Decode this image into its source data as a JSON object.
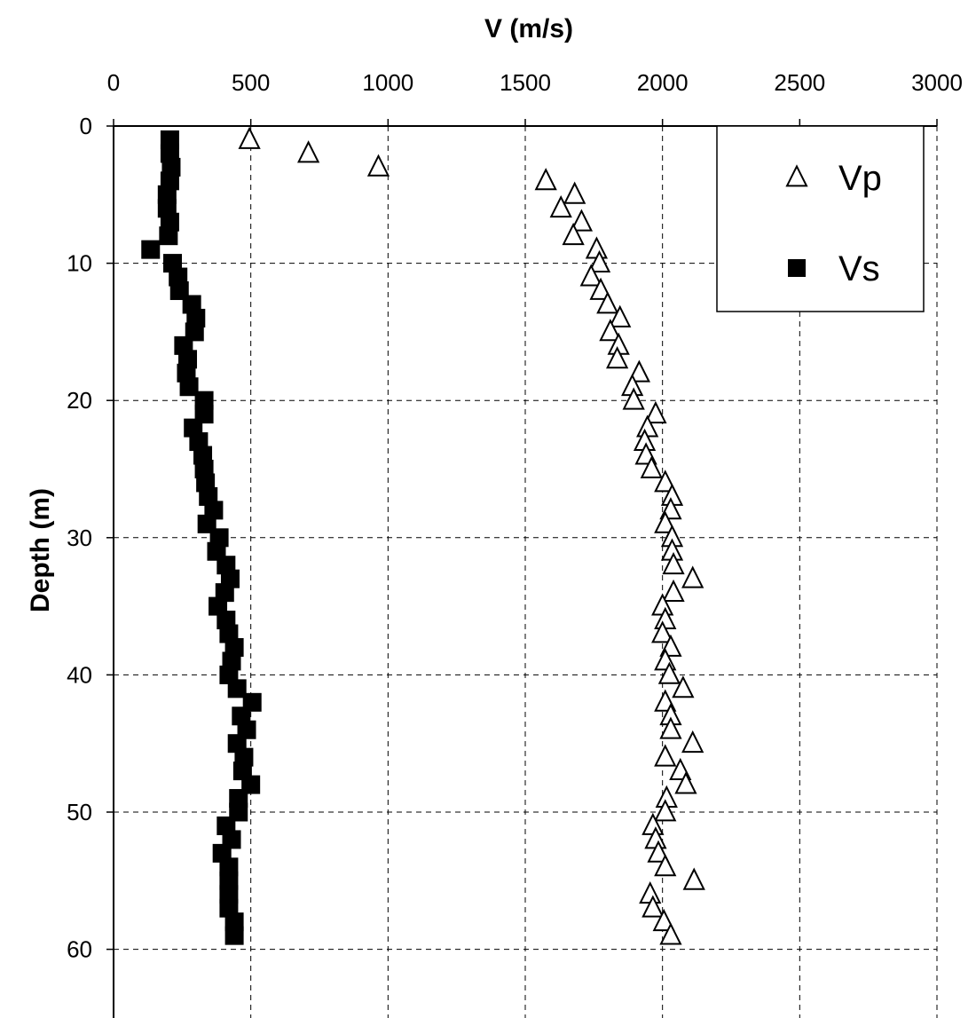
{
  "chart_data": {
    "type": "scatter",
    "xlabel": "V (m/s)",
    "ylabel": "Depth (m)",
    "xlim": [
      0,
      3000
    ],
    "ylim": [
      0,
      65
    ],
    "y_inverted": true,
    "x_axis_position": "top",
    "x_ticks": [
      0,
      500,
      1000,
      1500,
      2000,
      2500,
      3000
    ],
    "y_ticks": [
      0,
      10,
      20,
      30,
      40,
      50,
      60
    ],
    "grid": true,
    "legend_placement": "top-right",
    "series": [
      {
        "name": "Vp",
        "marker": "open-triangle",
        "color": "#000000",
        "points": [
          [
            495,
            1
          ],
          [
            710,
            2
          ],
          [
            965,
            3
          ],
          [
            1575,
            4
          ],
          [
            1680,
            5
          ],
          [
            1630,
            6
          ],
          [
            1705,
            7
          ],
          [
            1675,
            8
          ],
          [
            1760,
            9
          ],
          [
            1770,
            10
          ],
          [
            1740,
            11
          ],
          [
            1775,
            12
          ],
          [
            1800,
            13
          ],
          [
            1845,
            14
          ],
          [
            1810,
            15
          ],
          [
            1840,
            16
          ],
          [
            1835,
            17
          ],
          [
            1915,
            18
          ],
          [
            1890,
            19
          ],
          [
            1895,
            20
          ],
          [
            1975,
            21
          ],
          [
            1945,
            22
          ],
          [
            1935,
            23
          ],
          [
            1940,
            24
          ],
          [
            1960,
            25
          ],
          [
            2010,
            26
          ],
          [
            2035,
            27
          ],
          [
            2030,
            28
          ],
          [
            2010,
            29
          ],
          [
            2035,
            30
          ],
          [
            2035,
            31
          ],
          [
            2040,
            32
          ],
          [
            2110,
            33
          ],
          [
            2040,
            34
          ],
          [
            2000,
            35
          ],
          [
            2010,
            36
          ],
          [
            2000,
            37
          ],
          [
            2030,
            38
          ],
          [
            2010,
            39
          ],
          [
            2025,
            40
          ],
          [
            2075,
            41
          ],
          [
            2010,
            42
          ],
          [
            2030,
            43
          ],
          [
            2030,
            44
          ],
          [
            2110,
            45
          ],
          [
            2010,
            46
          ],
          [
            2065,
            47
          ],
          [
            2085,
            48
          ],
          [
            2015,
            49
          ],
          [
            2010,
            50
          ],
          [
            1965,
            51
          ],
          [
            1975,
            52
          ],
          [
            1985,
            53
          ],
          [
            2010,
            54
          ],
          [
            2115,
            55
          ],
          [
            1955,
            56
          ],
          [
            1965,
            57
          ],
          [
            2005,
            58
          ],
          [
            2030,
            59
          ]
        ]
      },
      {
        "name": "Vs",
        "marker": "filled-square",
        "color": "#000000",
        "points": [
          [
            205,
            1
          ],
          [
            205,
            2
          ],
          [
            210,
            3
          ],
          [
            205,
            4
          ],
          [
            195,
            5
          ],
          [
            195,
            6
          ],
          [
            205,
            7
          ],
          [
            200,
            8
          ],
          [
            135,
            9
          ],
          [
            215,
            10
          ],
          [
            235,
            11
          ],
          [
            240,
            12
          ],
          [
            285,
            13
          ],
          [
            300,
            14
          ],
          [
            295,
            15
          ],
          [
            255,
            16
          ],
          [
            270,
            17
          ],
          [
            265,
            18
          ],
          [
            275,
            19
          ],
          [
            330,
            20
          ],
          [
            330,
            21
          ],
          [
            290,
            22
          ],
          [
            310,
            23
          ],
          [
            325,
            24
          ],
          [
            330,
            25
          ],
          [
            335,
            26
          ],
          [
            345,
            27
          ],
          [
            365,
            28
          ],
          [
            340,
            29
          ],
          [
            385,
            30
          ],
          [
            375,
            31
          ],
          [
            410,
            32
          ],
          [
            425,
            33
          ],
          [
            405,
            34
          ],
          [
            380,
            35
          ],
          [
            410,
            36
          ],
          [
            420,
            37
          ],
          [
            440,
            38
          ],
          [
            430,
            39
          ],
          [
            420,
            40
          ],
          [
            450,
            41
          ],
          [
            505,
            42
          ],
          [
            465,
            43
          ],
          [
            485,
            44
          ],
          [
            450,
            45
          ],
          [
            475,
            46
          ],
          [
            470,
            47
          ],
          [
            500,
            48
          ],
          [
            455,
            49
          ],
          [
            455,
            50
          ],
          [
            410,
            51
          ],
          [
            430,
            52
          ],
          [
            395,
            53
          ],
          [
            420,
            54
          ],
          [
            420,
            55
          ],
          [
            420,
            56
          ],
          [
            420,
            57
          ],
          [
            440,
            58
          ],
          [
            440,
            59
          ]
        ]
      }
    ]
  }
}
